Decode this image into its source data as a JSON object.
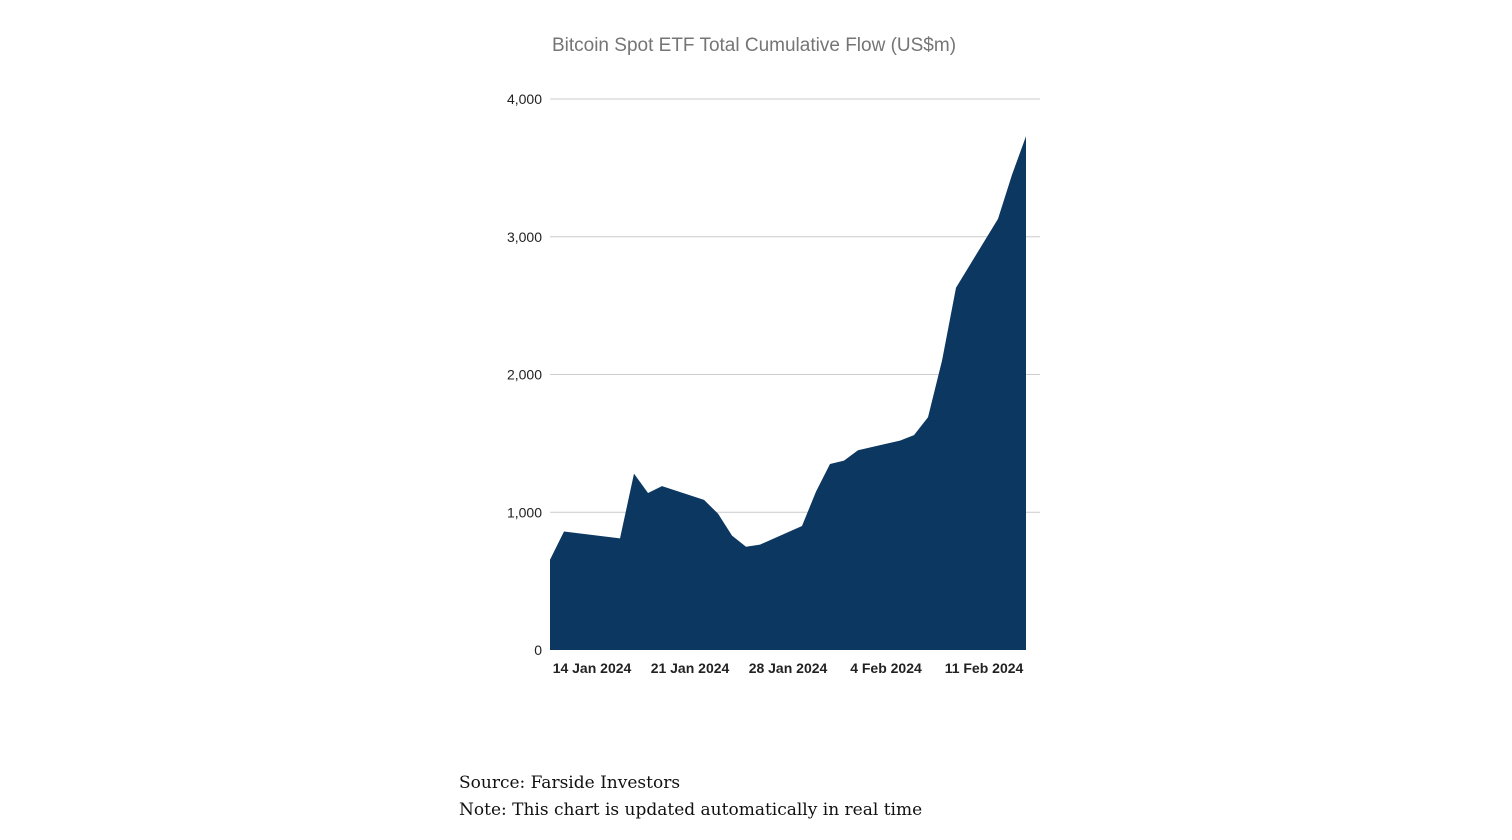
{
  "chart_data": {
    "type": "area",
    "title": "Bitcoin Spot ETF Total Cumulative Flow (US$m)",
    "xlabel": "",
    "ylabel": "",
    "ylim": [
      0,
      4000
    ],
    "yticks": [
      0,
      1000,
      2000,
      3000,
      4000
    ],
    "ytick_labels": [
      "0",
      "1,000",
      "2,000",
      "3,000",
      "4,000"
    ],
    "xlim": [
      "2024-01-11",
      "2024-02-15"
    ],
    "xticks": [
      "2024-01-14",
      "2024-01-21",
      "2024-01-28",
      "2024-02-04",
      "2024-02-11"
    ],
    "xtick_labels": [
      "14 Jan 2024",
      "21 Jan 2024",
      "28 Jan 2024",
      "4 Feb 2024",
      "11 Feb 2024"
    ],
    "grid": true,
    "color": "#0b3761",
    "series": [
      {
        "name": "Total Cumulative Flow",
        "x": [
          "2024-01-11",
          "2024-01-12",
          "2024-01-16",
          "2024-01-17",
          "2024-01-18",
          "2024-01-19",
          "2024-01-22",
          "2024-01-23",
          "2024-01-24",
          "2024-01-25",
          "2024-01-26",
          "2024-01-29",
          "2024-01-30",
          "2024-01-31",
          "2024-02-01",
          "2024-02-02",
          "2024-02-05",
          "2024-02-06",
          "2024-02-07",
          "2024-02-08",
          "2024-02-09",
          "2024-02-12",
          "2024-02-13",
          "2024-02-14"
        ],
        "values": [
          655,
          860,
          810,
          1280,
          1140,
          1190,
          1090,
          990,
          830,
          750,
          765,
          900,
          1150,
          1350,
          1375,
          1450,
          1520,
          1560,
          1690,
          2100,
          2630,
          3130,
          3450,
          3730
        ]
      }
    ]
  },
  "footnotes": {
    "source": "Source: Farside Investors",
    "note": "Note: This chart is updated automatically in real time"
  }
}
